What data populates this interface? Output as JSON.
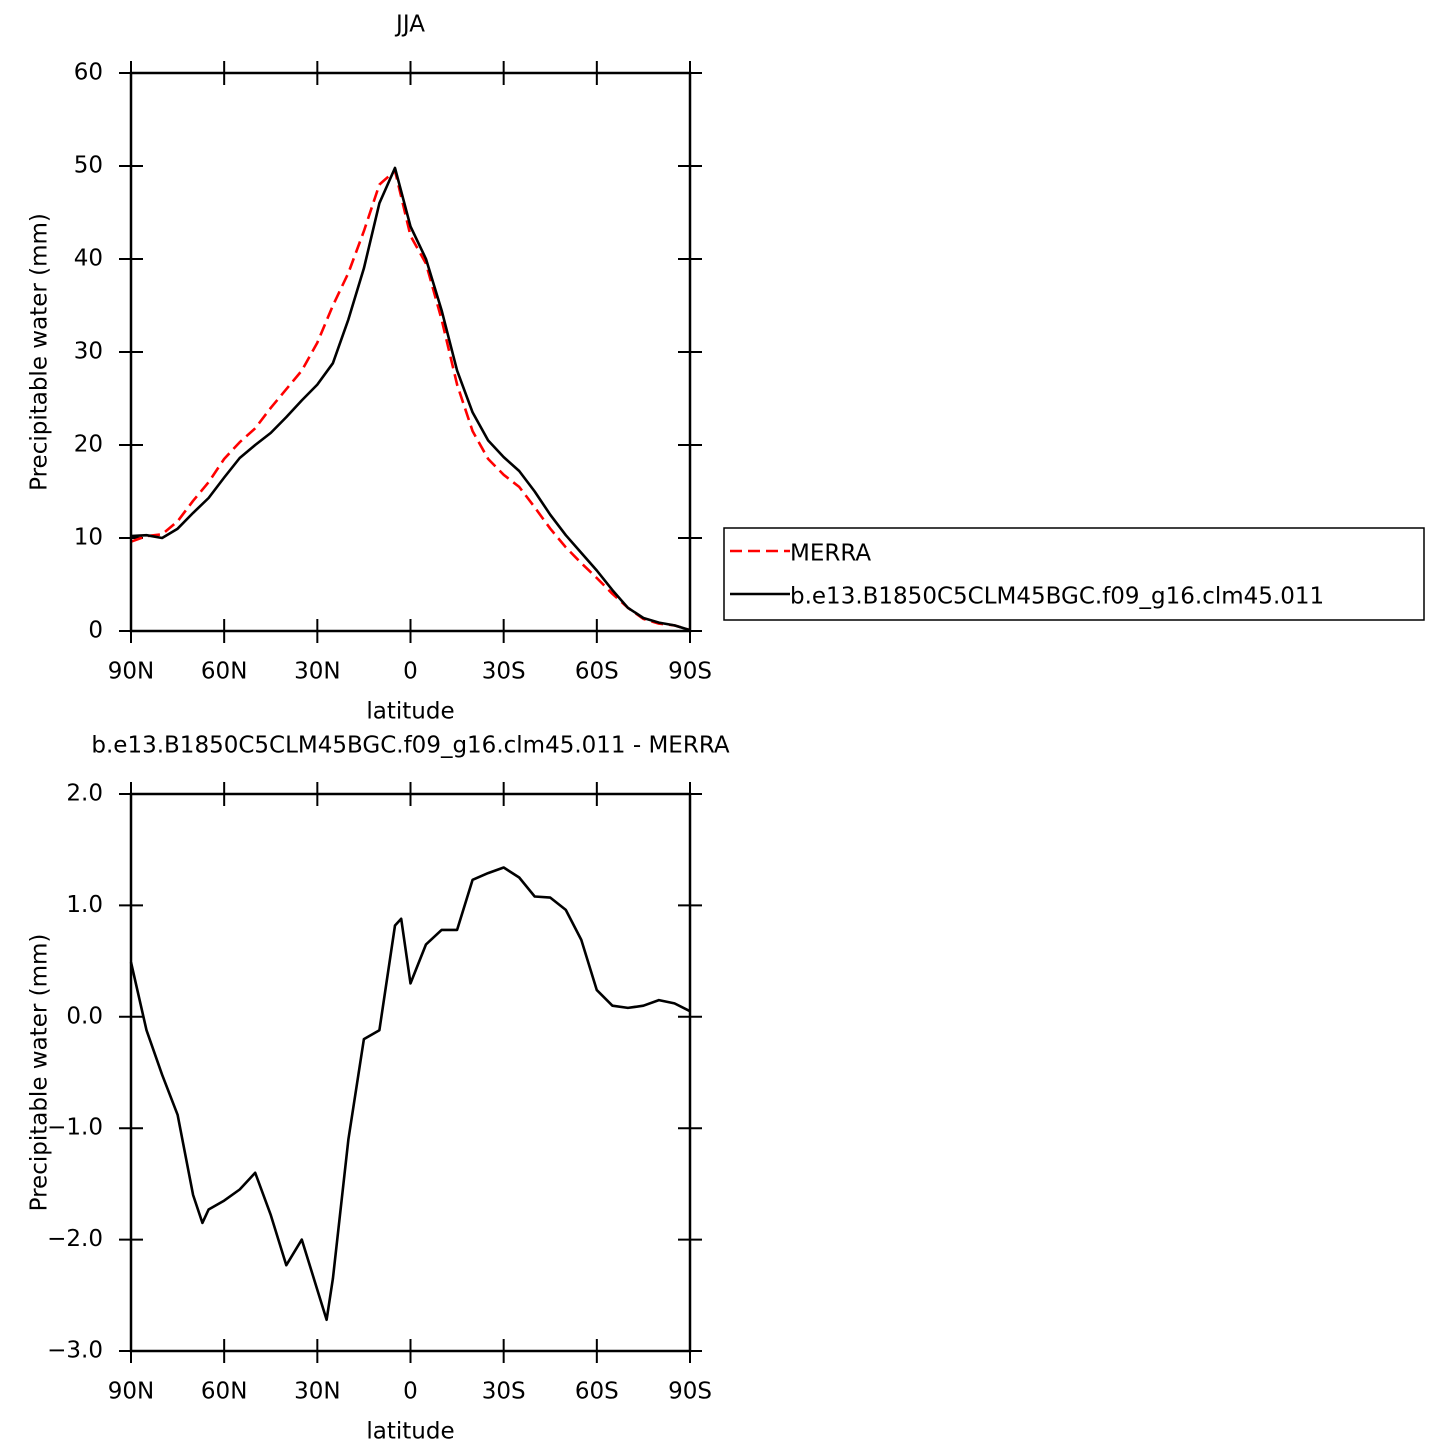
{
  "chart_data": [
    {
      "type": "line",
      "title": "JJA",
      "x_label": "latitude",
      "y_label": "Precipitable water (mm)",
      "x": [
        90,
        85,
        80,
        75,
        70,
        65,
        60,
        55,
        50,
        45,
        40,
        35,
        30,
        25,
        20,
        15,
        10,
        5,
        0,
        -5,
        -10,
        -15,
        -20,
        -25,
        -30,
        -35,
        -40,
        -45,
        -50,
        -55,
        -60,
        -65,
        -70,
        -75,
        -80,
        -85,
        -90
      ],
      "series": [
        {
          "name": "MERRA",
          "color": "#ff0000",
          "dashed": true,
          "values": [
            9.6,
            10.2,
            10.4,
            11.8,
            14.0,
            16.0,
            18.5,
            20.3,
            21.8,
            24,
            26,
            28,
            31,
            35,
            38.5,
            43,
            48,
            49.5,
            42.5,
            39.5,
            33.5,
            26.5,
            21.5,
            18.5,
            16.8,
            15.5,
            13.3,
            11,
            9,
            7.3,
            5.7,
            4.0,
            2.5,
            1.3,
            0.8,
            0.6,
            0.1
          ]
        },
        {
          "name": "b.e13.B1850C5CLM45BGC.f09_g16.clm45.011",
          "color": "#000000",
          "dashed": false,
          "values": [
            10.2,
            10.3,
            10.0,
            11.0,
            12.7,
            14.3,
            16.5,
            18.6,
            20.0,
            21.3,
            23.0,
            24.8,
            26.5,
            28.8,
            33.5,
            39,
            46,
            49.8,
            43.5,
            40,
            34.5,
            28,
            23.5,
            20.5,
            18.7,
            17.2,
            15,
            12.5,
            10.3,
            8.4,
            6.5,
            4.4,
            2.5,
            1.4,
            0.9,
            0.6,
            0.1
          ]
        }
      ],
      "xlim": [
        90,
        -90
      ],
      "xticks": [
        {
          "value": 90,
          "label": "90N"
        },
        {
          "value": 60,
          "label": "60N"
        },
        {
          "value": 30,
          "label": "30N"
        },
        0,
        {
          "value": -30,
          "label": "30S"
        },
        {
          "value": -60,
          "label": "60S"
        },
        {
          "value": -90,
          "label": "90S"
        }
      ],
      "ylim": [
        0,
        60
      ],
      "yticks": [
        0,
        10,
        20,
        30,
        40,
        50,
        60
      ],
      "legend": "right"
    },
    {
      "type": "line",
      "title": "b.e13.B1850C5CLM45BGC.f09_g16.clm45.011  -  MERRA",
      "x_label": "latitude",
      "y_label": "Precipitable water (mm)",
      "x": [
        90,
        85,
        80,
        75,
        70,
        67,
        65,
        60,
        55,
        50,
        45,
        40,
        35,
        30,
        27,
        25,
        20,
        15,
        10,
        5,
        3,
        0,
        -5,
        -10,
        -15,
        -20,
        -25,
        -30,
        -35,
        -40,
        -45,
        -50,
        -55,
        -60,
        -65,
        -70,
        -75,
        -80,
        -85,
        -90
      ],
      "series": [
        {
          "name": "difference",
          "color": "#000000",
          "dashed": false,
          "values": [
            0.49,
            -0.12,
            -0.52,
            -0.88,
            -1.6,
            -1.85,
            -1.73,
            -1.65,
            -1.55,
            -1.4,
            -1.78,
            -2.23,
            -2.0,
            -2.45,
            -2.72,
            -2.35,
            -1.1,
            -0.2,
            -0.12,
            0.82,
            0.88,
            0.3,
            0.65,
            0.78,
            0.78,
            1.23,
            1.29,
            1.34,
            1.25,
            1.08,
            1.07,
            0.96,
            0.69,
            0.24,
            0.1,
            0.08,
            0.1,
            0.15,
            0.12,
            0.05
          ]
        }
      ],
      "xlim": [
        90,
        -90
      ],
      "xticks": [
        {
          "value": 90,
          "label": "90N"
        },
        {
          "value": 60,
          "label": "60N"
        },
        {
          "value": 30,
          "label": "30N"
        },
        0,
        {
          "value": -30,
          "label": "30S"
        },
        {
          "value": -60,
          "label": "60S"
        },
        {
          "value": -90,
          "label": "90S"
        }
      ],
      "ylim": [
        -3,
        2
      ],
      "yticks": [
        {
          "value": -3,
          "label": "−3.0"
        },
        {
          "value": -2,
          "label": "−2.0"
        },
        {
          "value": -1,
          "label": "−1.0"
        },
        {
          "value": 0,
          "label": "0.0"
        },
        {
          "value": 1,
          "label": "1.0"
        },
        {
          "value": 2,
          "label": "2.0"
        }
      ]
    }
  ]
}
